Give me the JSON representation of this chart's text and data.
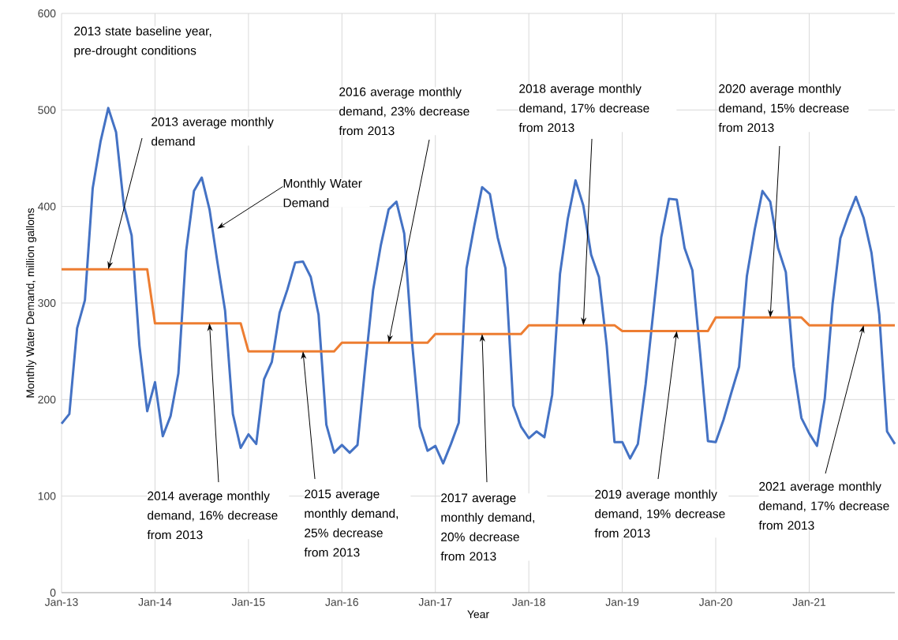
{
  "chart_data": {
    "type": "line",
    "xlabel": "Year",
    "ylabel": "Monthly Water Demand, million gallons",
    "x": [
      "2013-01",
      "2013-02",
      "2013-03",
      "2013-04",
      "2013-05",
      "2013-06",
      "2013-07",
      "2013-08",
      "2013-09",
      "2013-10",
      "2013-11",
      "2013-12",
      "2014-01",
      "2014-02",
      "2014-03",
      "2014-04",
      "2014-05",
      "2014-06",
      "2014-07",
      "2014-08",
      "2014-09",
      "2014-10",
      "2014-11",
      "2014-12",
      "2015-01",
      "2015-02",
      "2015-03",
      "2015-04",
      "2015-05",
      "2015-06",
      "2015-07",
      "2015-08",
      "2015-09",
      "2015-10",
      "2015-11",
      "2015-12",
      "2016-01",
      "2016-02",
      "2016-03",
      "2016-04",
      "2016-05",
      "2016-06",
      "2016-07",
      "2016-08",
      "2016-09",
      "2016-10",
      "2016-11",
      "2016-12",
      "2017-01",
      "2017-02",
      "2017-03",
      "2017-04",
      "2017-05",
      "2017-06",
      "2017-07",
      "2017-08",
      "2017-09",
      "2017-10",
      "2017-11",
      "2017-12",
      "2018-01",
      "2018-02",
      "2018-03",
      "2018-04",
      "2018-05",
      "2018-06",
      "2018-07",
      "2018-08",
      "2018-09",
      "2018-10",
      "2018-11",
      "2018-12",
      "2019-01",
      "2019-02",
      "2019-03",
      "2019-04",
      "2019-05",
      "2019-06",
      "2019-07",
      "2019-08",
      "2019-09",
      "2019-10",
      "2019-11",
      "2019-12",
      "2020-01",
      "2020-02",
      "2020-03",
      "2020-04",
      "2020-05",
      "2020-06",
      "2020-07",
      "2020-08",
      "2020-09",
      "2020-10",
      "2020-11",
      "2020-12",
      "2021-01",
      "2021-02",
      "2021-03",
      "2021-04",
      "2021-05",
      "2021-06",
      "2021-07",
      "2021-08",
      "2021-09",
      "2021-10",
      "2021-11",
      "2021-12"
    ],
    "series": [
      {
        "color": "#4472c4",
        "values": [
          175,
          185,
          274,
          303,
          419,
          467,
          502,
          477,
          401,
          370,
          256,
          188,
          218,
          162,
          183,
          227,
          354,
          416,
          430,
          397,
          343,
          292,
          185,
          150,
          164,
          154,
          221,
          239,
          290,
          314,
          342,
          343,
          327,
          288,
          174,
          145,
          153,
          145,
          153,
          235,
          313,
          360,
          397,
          405,
          372,
          260,
          172,
          147,
          152,
          134,
          154,
          176,
          336,
          380,
          420,
          413,
          368,
          336,
          194,
          172,
          160,
          167,
          161,
          205,
          330,
          387,
          427,
          401,
          350,
          327,
          256,
          156,
          156,
          139,
          154,
          216,
          292,
          368,
          408,
          407,
          357,
          334,
          248,
          157,
          156,
          179,
          207,
          234,
          328,
          376,
          416,
          405,
          357,
          332,
          234,
          181,
          165,
          152,
          201,
          299,
          367,
          390,
          410,
          388,
          352,
          288,
          167,
          154
        ]
      },
      {
        "color": "#ed7d31",
        "values": [
          335,
          335,
          335,
          335,
          335,
          335,
          335,
          335,
          335,
          335,
          335,
          335,
          279,
          279,
          279,
          279,
          279,
          279,
          279,
          279,
          279,
          279,
          279,
          279,
          250,
          250,
          250,
          250,
          250,
          250,
          250,
          250,
          250,
          250,
          250,
          250,
          259,
          259,
          259,
          259,
          259,
          259,
          259,
          259,
          259,
          259,
          259,
          259,
          268,
          268,
          268,
          268,
          268,
          268,
          268,
          268,
          268,
          268,
          268,
          268,
          277,
          277,
          277,
          277,
          277,
          277,
          277,
          277,
          277,
          277,
          277,
          277,
          271,
          271,
          271,
          271,
          271,
          271,
          271,
          271,
          271,
          271,
          271,
          271,
          285,
          285,
          285,
          285,
          285,
          285,
          285,
          285,
          285,
          285,
          285,
          285,
          277,
          277,
          277,
          277,
          277,
          277,
          277,
          277,
          277,
          277,
          277,
          277
        ]
      }
    ],
    "xlim": [
      "2013-01",
      "2021-12"
    ],
    "xticks": [
      {
        "value": "2013-01",
        "label": "Jan-13"
      },
      {
        "value": "2014-01",
        "label": "Jan-14"
      },
      {
        "value": "2015-01",
        "label": "Jan-15"
      },
      {
        "value": "2016-01",
        "label": "Jan-16"
      },
      {
        "value": "2017-01",
        "label": "Jan-17"
      },
      {
        "value": "2018-01",
        "label": "Jan-18"
      },
      {
        "value": "2019-01",
        "label": "Jan-19"
      },
      {
        "value": "2020-01",
        "label": "Jan-20"
      },
      {
        "value": "2021-01",
        "label": "Jan-21"
      }
    ],
    "ylim": [
      0,
      600
    ],
    "yticks": [
      0,
      100,
      200,
      300,
      400,
      500,
      600
    ],
    "grid": true,
    "marker": "none",
    "line_style": "solid",
    "annotations": [
      "2013 state baseline year, pre-drought conditions",
      {
        "text": "2013 average monthly demand",
        "x": "2013-07",
        "y": 335
      },
      {
        "text": "Monthly Water Demand",
        "x": "2014-09",
        "y": 377
      },
      {
        "text": "2014 average monthly demand, 16% decrease from 2013",
        "x": "2014-08",
        "y": 279
      },
      {
        "text": "2015 average monthly demand, 25% decrease from 2013",
        "x": "2015-08",
        "y": 250
      },
      {
        "text": "2016 average monthly demand, 23% decrease from 2013",
        "x": "2016-07",
        "y": 259
      },
      {
        "text": "2017 average monthly demand, 20% decrease from 2013",
        "x": "2017-07",
        "y": 268
      },
      {
        "text": "2018 average monthly demand, 17% decrease from 2013",
        "x": "2018-08",
        "y": 277
      },
      {
        "text": "2019 average monthly demand, 19% decrease from 2013",
        "x": "2019-08",
        "y": 271
      },
      {
        "text": "2020 average monthly demand, 15% decrease from 2013",
        "x": "2020-08",
        "y": 285
      },
      {
        "text": "2021 average monthly demand, 17% decrease from 2013",
        "x": "2021-08",
        "y": 277
      }
    ]
  }
}
